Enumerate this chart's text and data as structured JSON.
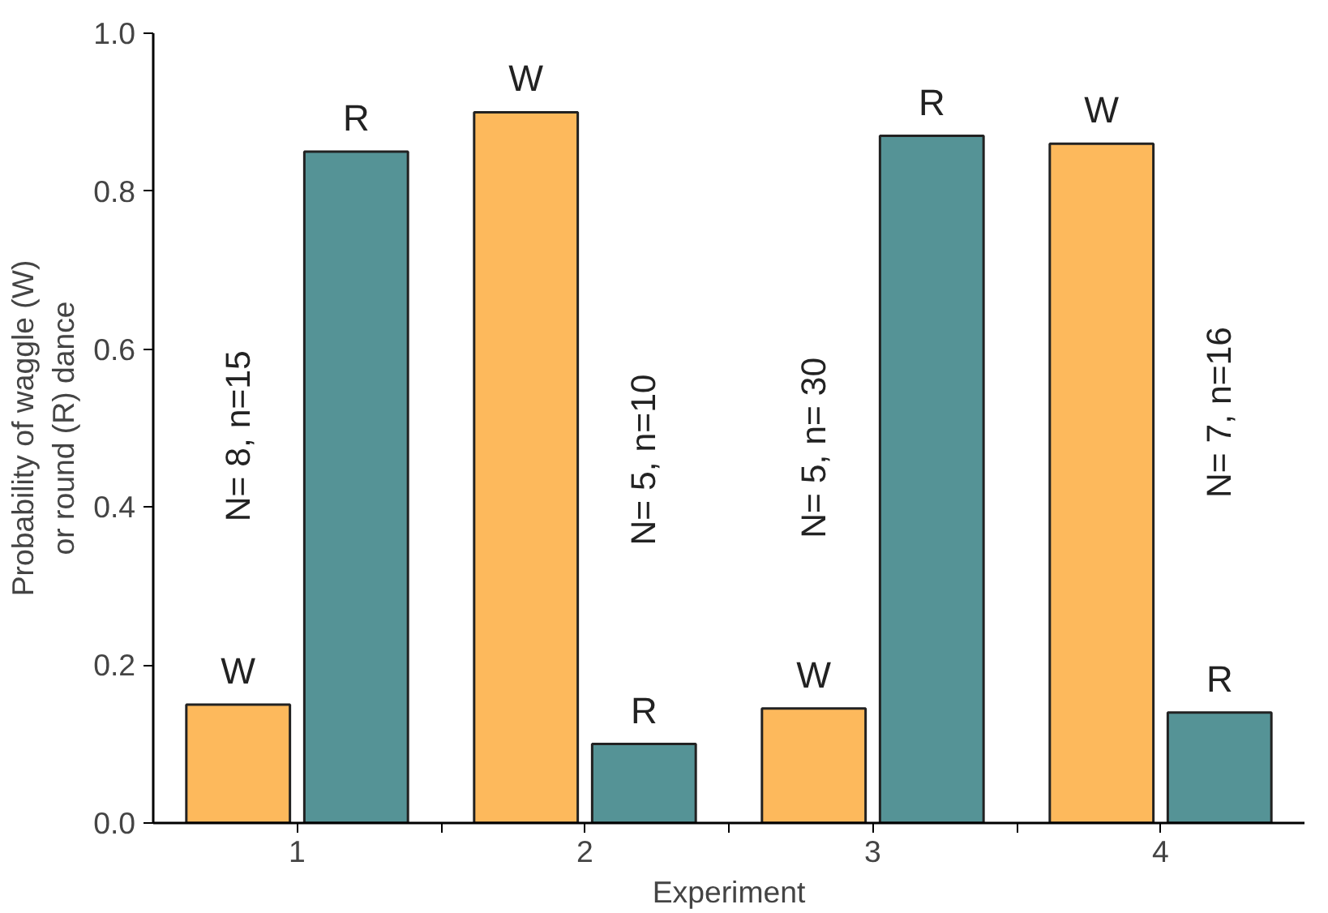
{
  "chart_data": {
    "type": "bar",
    "xlabel": "Experiment",
    "ylabel": "Probability of waggle (W)\nor round (R) dance",
    "categories": [
      "1",
      "2",
      "3",
      "4"
    ],
    "series": [
      {
        "name": "W",
        "color": "#fdb95c",
        "values": [
          0.15,
          0.9,
          0.145,
          0.86
        ]
      },
      {
        "name": "R",
        "color": "#559396",
        "values": [
          0.85,
          0.1,
          0.87,
          0.14
        ]
      }
    ],
    "ylim": [
      0,
      1.0
    ],
    "yticks": [
      {
        "value": 0,
        "label": "0.0"
      },
      {
        "value": 0.2,
        "label": "0.2"
      },
      {
        "value": 0.4,
        "label": "0.4"
      },
      {
        "value": 0.6,
        "label": "0.6"
      },
      {
        "value": 0.8,
        "label": "0.8"
      },
      {
        "value": 1.0,
        "label": "1.0"
      }
    ],
    "annotations": [
      {
        "text": "N= 8, n=15",
        "x": "1",
        "y": 0.49
      },
      {
        "text": "N= 5, n=10",
        "x": "2",
        "y": 0.46
      },
      {
        "text": "N= 5, n= 30",
        "x": "3",
        "y": 0.475
      },
      {
        "text": "N= 7, n=16",
        "x": "4",
        "y": 0.52
      }
    ],
    "grid": false
  }
}
